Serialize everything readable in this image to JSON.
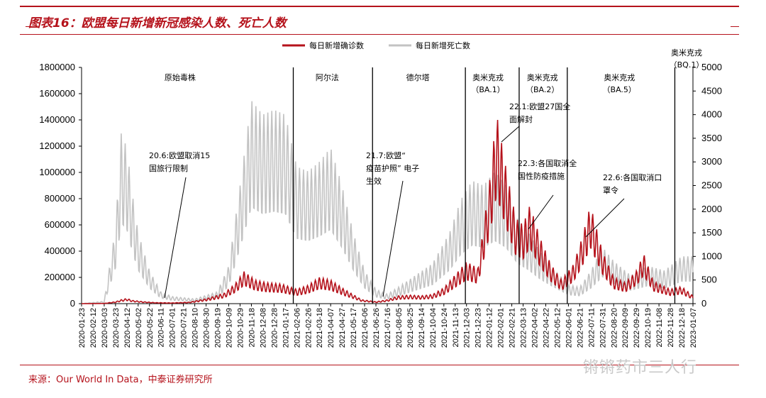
{
  "title": "图表16：欧盟每日新增新冠感染人数、死亡人数",
  "source": "来源：Our World In Data，中泰证券研究所",
  "watermark": "锵锵药市三人行",
  "colors": {
    "confirmed": "#b5121b",
    "deaths": "#c3c3c3",
    "accent": "#b5121b"
  },
  "chart_data": {
    "type": "line",
    "series": [
      {
        "name": "每日新增确诊数",
        "axis": "left",
        "color": "#b5121b",
        "points": [
          [
            "2020-01-23",
            0
          ],
          [
            "2020-03-03",
            2000
          ],
          [
            "2020-03-23",
            15000
          ],
          [
            "2020-04-02",
            30000
          ],
          [
            "2020-04-12",
            40000
          ],
          [
            "2020-04-22",
            25000
          ],
          [
            "2020-05-12",
            15000
          ],
          [
            "2020-06-01",
            8000
          ],
          [
            "2020-07-01",
            6000
          ],
          [
            "2020-08-01",
            12000
          ],
          [
            "2020-09-01",
            40000
          ],
          [
            "2020-10-01",
            80000
          ],
          [
            "2020-10-20",
            150000
          ],
          [
            "2020-11-05",
            245000
          ],
          [
            "2020-11-25",
            180000
          ],
          [
            "2020-12-15",
            160000
          ],
          [
            "2021-01-10",
            150000
          ],
          [
            "2021-02-06",
            110000
          ],
          [
            "2021-02-26",
            140000
          ],
          [
            "2021-03-18",
            200000
          ],
          [
            "2021-04-07",
            180000
          ],
          [
            "2021-05-01",
            110000
          ],
          [
            "2021-06-01",
            30000
          ],
          [
            "2021-06-26",
            15000
          ],
          [
            "2021-07-16",
            30000
          ],
          [
            "2021-08-05",
            60000
          ],
          [
            "2021-08-25",
            65000
          ],
          [
            "2021-09-14",
            60000
          ],
          [
            "2021-10-04",
            70000
          ],
          [
            "2021-10-24",
            120000
          ],
          [
            "2021-11-13",
            220000
          ],
          [
            "2021-12-03",
            320000
          ],
          [
            "2021-12-23",
            270000
          ],
          [
            "2022-01-12",
            900000
          ],
          [
            "2022-01-25",
            1450000
          ],
          [
            "2022-02-10",
            1050000
          ],
          [
            "2022-02-28",
            650000
          ],
          [
            "2022-03-13",
            600000
          ],
          [
            "2022-03-25",
            750000
          ],
          [
            "2022-04-12",
            500000
          ],
          [
            "2022-05-01",
            300000
          ],
          [
            "2022-05-20",
            180000
          ],
          [
            "2022-06-10",
            300000
          ],
          [
            "2022-06-25",
            500000
          ],
          [
            "2022-07-10",
            750000
          ],
          [
            "2022-07-31",
            400000
          ],
          [
            "2022-08-20",
            200000
          ],
          [
            "2022-09-10",
            160000
          ],
          [
            "2022-09-29",
            250000
          ],
          [
            "2022-10-12",
            380000
          ],
          [
            "2022-10-29",
            170000
          ],
          [
            "2022-11-28",
            110000
          ],
          [
            "2022-12-18",
            130000
          ],
          [
            "2023-01-07",
            60000
          ]
        ]
      },
      {
        "name": "每日新增死亡数",
        "axis": "right",
        "color": "#c3c3c3",
        "points": [
          [
            "2020-01-23",
            0
          ],
          [
            "2020-03-03",
            50
          ],
          [
            "2020-03-23",
            1600
          ],
          [
            "2020-04-02",
            3600
          ],
          [
            "2020-04-12",
            3300
          ],
          [
            "2020-04-22",
            2300
          ],
          [
            "2020-05-02",
            1500
          ],
          [
            "2020-05-22",
            700
          ],
          [
            "2020-06-11",
            250
          ],
          [
            "2020-07-01",
            150
          ],
          [
            "2020-08-10",
            100
          ],
          [
            "2020-09-19",
            250
          ],
          [
            "2020-10-09",
            800
          ],
          [
            "2020-10-29",
            2500
          ],
          [
            "2020-11-18",
            4300
          ],
          [
            "2020-12-08",
            4000
          ],
          [
            "2020-12-28",
            4100
          ],
          [
            "2021-01-17",
            4000
          ],
          [
            "2021-02-06",
            2900
          ],
          [
            "2021-02-26",
            2800
          ],
          [
            "2021-03-18",
            3000
          ],
          [
            "2021-04-07",
            3300
          ],
          [
            "2021-04-27",
            2500
          ],
          [
            "2021-05-17",
            1500
          ],
          [
            "2021-06-06",
            700
          ],
          [
            "2021-06-26",
            300
          ],
          [
            "2021-07-16",
            200
          ],
          [
            "2021-08-05",
            350
          ],
          [
            "2021-09-04",
            600
          ],
          [
            "2021-10-04",
            850
          ],
          [
            "2021-11-03",
            1500
          ],
          [
            "2021-11-23",
            2200
          ],
          [
            "2021-12-13",
            2600
          ],
          [
            "2022-01-02",
            2500
          ],
          [
            "2022-01-22",
            2800
          ],
          [
            "2022-02-11",
            2500
          ],
          [
            "2022-03-03",
            1800
          ],
          [
            "2022-03-23",
            1500
          ],
          [
            "2022-04-12",
            1100
          ],
          [
            "2022-05-02",
            800
          ],
          [
            "2022-06-01",
            400
          ],
          [
            "2022-06-21",
            350
          ],
          [
            "2022-07-11",
            700
          ],
          [
            "2022-07-31",
            1200
          ],
          [
            "2022-08-20",
            900
          ],
          [
            "2022-09-19",
            600
          ],
          [
            "2022-10-19",
            800
          ],
          [
            "2022-11-18",
            700
          ],
          [
            "2022-12-18",
            1000
          ],
          [
            "2023-01-07",
            1000
          ]
        ]
      }
    ],
    "y_left": {
      "min": 0,
      "max": 1800000,
      "ticks": [
        "0",
        "200000",
        "400000",
        "600000",
        "800000",
        "1000000",
        "1200000",
        "1400000",
        "1600000",
        "1800000"
      ]
    },
    "y_right": {
      "min": 0,
      "max": 5000,
      "ticks": [
        "0",
        "500",
        "1000",
        "1500",
        "2000",
        "2500",
        "3000",
        "3500",
        "4000",
        "4500",
        "5000"
      ]
    },
    "x_ticks": [
      "2020-01-23",
      "2020-02-12",
      "2020-03-03",
      "2020-03-23",
      "2020-04-12",
      "2020-05-02",
      "2020-05-22",
      "2020-06-11",
      "2020-07-01",
      "2020-07-21",
      "2020-08-10",
      "2020-08-30",
      "2020-09-19",
      "2020-10-09",
      "2020-10-29",
      "2020-11-18",
      "2020-12-08",
      "2020-12-28",
      "2021-01-17",
      "2021-02-06",
      "2021-02-26",
      "2021-03-18",
      "2021-04-07",
      "2021-04-27",
      "2021-05-17",
      "2021-06-06",
      "2021-06-26",
      "2021-07-16",
      "2021-08-05",
      "2021-08-25",
      "2021-09-14",
      "2021-10-04",
      "2021-10-24",
      "2021-11-13",
      "2021-12-03",
      "2021-12-23",
      "2022-01-12",
      "2022-02-01",
      "2022-02-21",
      "2022-03-13",
      "2022-04-02",
      "2022-04-22",
      "2022-05-12",
      "2022-06-01",
      "2022-06-21",
      "2022-07-11",
      "2022-07-31",
      "2022-08-20",
      "2022-09-09",
      "2022-09-29",
      "2022-10-19",
      "2022-11-08",
      "2022-11-28",
      "2022-12-18",
      "2023-01-07"
    ],
    "period_dividers": [
      "2021-01-31",
      "2021-06-20",
      "2021-12-01",
      "2022-03-06",
      "2022-05-30",
      "2022-12-06"
    ],
    "period_labels": [
      {
        "lines": [
          "原始毒株"
        ],
        "x": "2020-07-15"
      },
      {
        "lines": [
          "阿尔法"
        ],
        "x": "2021-04-01"
      },
      {
        "lines": [
          "德尔塔"
        ],
        "x": "2021-09-08"
      },
      {
        "lines": [
          "奥米克戎",
          "（BA.1）"
        ],
        "x": "2022-01-10"
      },
      {
        "lines": [
          "奥米克戎",
          "（BA.2）"
        ],
        "x": "2022-04-16"
      },
      {
        "lines": [
          "奥米克戎",
          "（BA.5）"
        ],
        "x": "2022-08-30"
      },
      {
        "lines": [
          "奥米克戎",
          "（BQ.1）"
        ],
        "x": "2023-01-04"
      }
    ],
    "annotations": [
      {
        "lines": [
          "20.6:欧盟取消15",
          "国旅行限制"
        ],
        "date": "2020-06-15"
      },
      {
        "lines": [
          "21.7:欧盟“",
          "疫苗护照”  电子",
          "                 生效"
        ],
        "date": "2021-07-01"
      },
      {
        "lines": [
          "22.1:欧盟27国全",
          "面解封"
        ],
        "date": "2022-01-28"
      },
      {
        "lines": [
          "22.3:各国取消全",
          "国性防疫措施"
        ],
        "date": "2022-03-25"
      },
      {
        "lines": [
          "22.6:各国取消口",
          "罩令"
        ],
        "date": "2022-06-25"
      }
    ],
    "legend_position": "top-center"
  }
}
